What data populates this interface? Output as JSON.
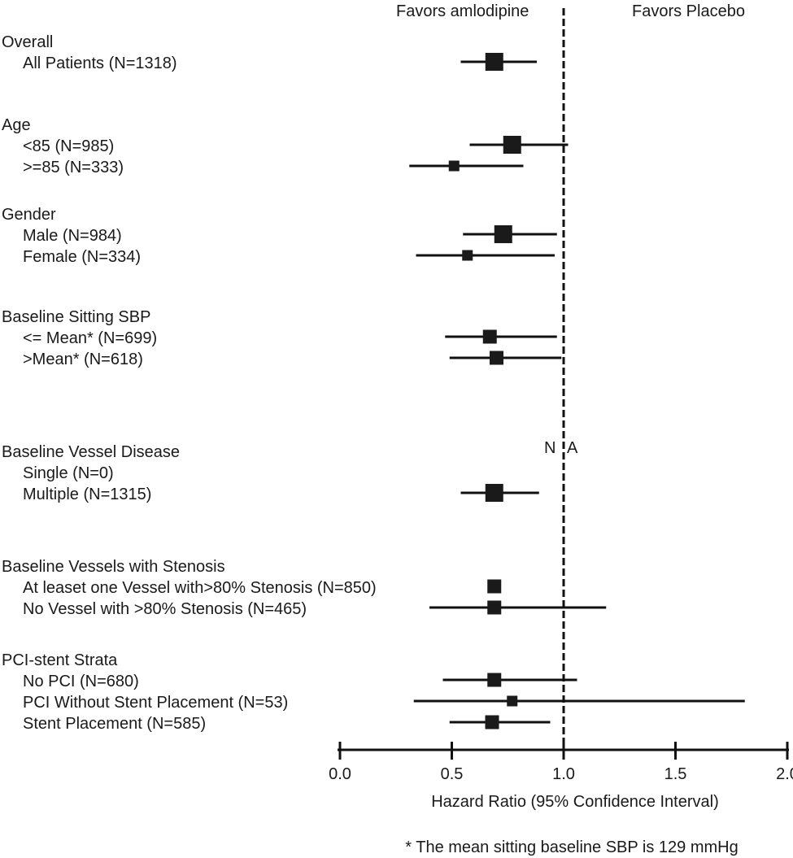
{
  "chart_data": {
    "type": "forest",
    "title": "",
    "header_left": "Favors amlodipine",
    "header_right": "Favors Placebo",
    "xlabel": "Hazard Ratio (95% Confidence Interval)",
    "xlim": [
      0.0,
      2.0
    ],
    "xticks": [
      "0.0",
      "0.5",
      "1.0",
      "1.5",
      "2.0"
    ],
    "reference_line": 1.0,
    "na_annotation": {
      "left": "N",
      "right": "A"
    },
    "footnote": "* The mean sitting baseline SBP is 129 mmHg",
    "groups": [
      {
        "label": "Overall",
        "rows": [
          {
            "label": "All Patients (N=1318)",
            "hr": 0.69,
            "lo": 0.54,
            "hi": 0.88,
            "size": "large"
          }
        ]
      },
      {
        "label": "Age",
        "rows": [
          {
            "label": "<85 (N=985)",
            "hr": 0.77,
            "lo": 0.58,
            "hi": 1.02,
            "size": "large"
          },
          {
            "label": ">=85 (N=333)",
            "hr": 0.51,
            "lo": 0.31,
            "hi": 0.82,
            "size": "small"
          }
        ]
      },
      {
        "label": "Gender",
        "rows": [
          {
            "label": "Male (N=984)",
            "hr": 0.73,
            "lo": 0.55,
            "hi": 0.97,
            "size": "large"
          },
          {
            "label": "Female (N=334)",
            "hr": 0.57,
            "lo": 0.34,
            "hi": 0.96,
            "size": "small"
          }
        ]
      },
      {
        "label": "Baseline Sitting SBP",
        "rows": [
          {
            "label": "<= Mean* (N=699)",
            "hr": 0.67,
            "lo": 0.47,
            "hi": 0.97,
            "size": "medium"
          },
          {
            "label": ">Mean* (N=618)",
            "hr": 0.7,
            "lo": 0.49,
            "hi": 0.99,
            "size": "medium"
          }
        ]
      },
      {
        "label": "Baseline Vessel Disease",
        "rows": [
          {
            "label": "Single (N=0)",
            "hr": null,
            "lo": null,
            "hi": null,
            "size": "none"
          },
          {
            "label": "Multiple (N=1315)",
            "hr": 0.69,
            "lo": 0.54,
            "hi": 0.89,
            "size": "large"
          }
        ]
      },
      {
        "label": "Baseline Vessels with Stenosis",
        "rows": [
          {
            "label": "At leaset one Vessel with>80% Stenosis (N=850)",
            "hr": 0.69,
            "lo": null,
            "hi": null,
            "size": "medium"
          },
          {
            "label": "No Vessel with >80% Stenosis (N=465)",
            "hr": 0.69,
            "lo": 0.4,
            "hi": 1.19,
            "size": "medium"
          }
        ]
      },
      {
        "label": "PCI-stent Strata",
        "rows": [
          {
            "label": "No PCI (N=680)",
            "hr": 0.69,
            "lo": 0.46,
            "hi": 1.06,
            "size": "medium"
          },
          {
            "label": "PCI Without Stent Placement (N=53)",
            "hr": 0.77,
            "lo": 0.33,
            "hi": 1.81,
            "size": "small"
          },
          {
            "label": "Stent Placement (N=585)",
            "hr": 0.68,
            "lo": 0.49,
            "hi": 0.94,
            "size": "medium"
          }
        ]
      }
    ]
  }
}
